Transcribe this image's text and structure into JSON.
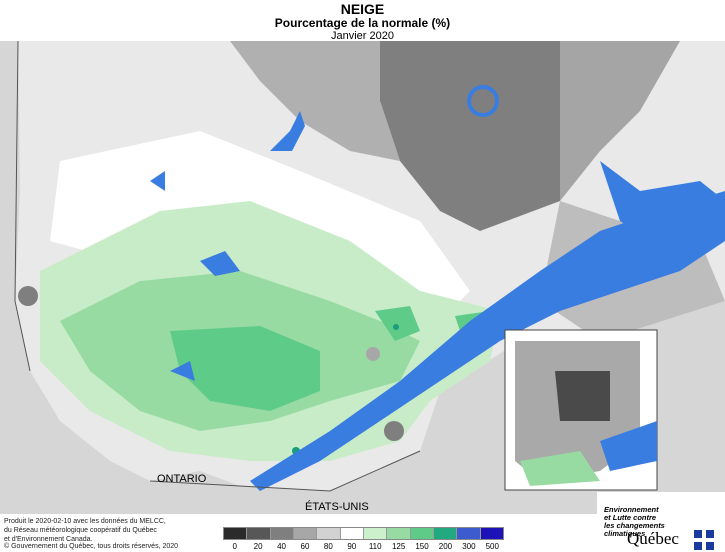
{
  "header": {
    "title": "NEIGE",
    "subtitle": "Pourcentage de la normale (%)",
    "date": "Janvier 2020"
  },
  "map": {
    "labels": {
      "ontario": "ONTARIO",
      "usa": "ÉTATS-UNIS"
    },
    "colors": {
      "land_grey_light": "#d9d9d9",
      "land_grey_mid": "#a9a9a9",
      "land_grey_dark": "#7a7a7a",
      "land_darkest": "#4a4a4a",
      "green_light": "#c8ecc8",
      "green_mid": "#8fd69c",
      "green_strong": "#3fbf78",
      "teal": "#1a9c7f",
      "water": "#3a7de0"
    }
  },
  "credits": {
    "line1": "Produit le 2020-02-10 avec les données du MELCC,",
    "line2": "du Réseau météorologique coopératif du Québec",
    "line3": "et d'Environnement Canada.",
    "copyright": "© Gouvernement du Québec, tous droits réservés, 2020"
  },
  "legend": {
    "ticks": [
      "0",
      "20",
      "40",
      "60",
      "80",
      "90",
      "110",
      "125",
      "150",
      "200",
      "300",
      "500"
    ],
    "colors": [
      "#2b2b2b",
      "#575757",
      "#7f7f7f",
      "#a7a7a7",
      "#d2d2d2",
      "#ffffff",
      "#ccefcc",
      "#98dba2",
      "#5fcb89",
      "#23a97f",
      "#3b5bcf",
      "#1d12b8"
    ]
  },
  "logo": {
    "ministry_line1": "Environnement",
    "ministry_line2": "et Lutte contre",
    "ministry_line3": "les changements",
    "ministry_line4": "climatiques",
    "name": "Québec"
  }
}
